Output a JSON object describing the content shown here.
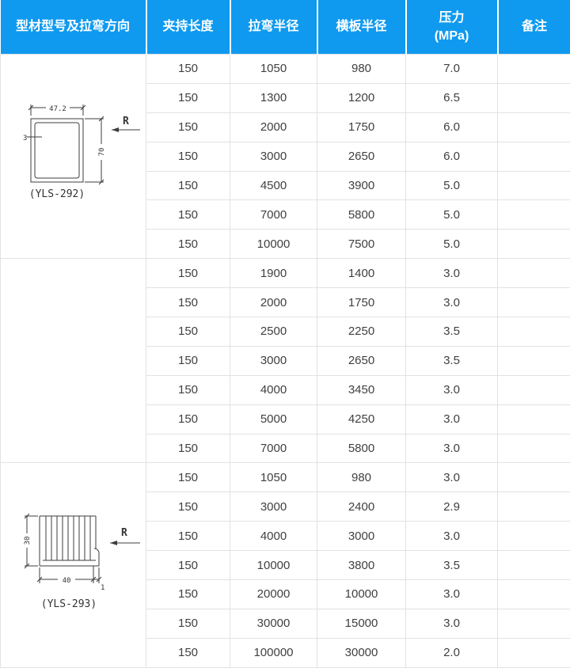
{
  "colors": {
    "header_bg": "#0f9af0",
    "header_text": "#ffffff",
    "grid_line": "#e2e2e2",
    "body_text": "#404040"
  },
  "table": {
    "headers": [
      "型材型号及拉弯方向",
      "夹持长度",
      "拉弯半径",
      "横板半径",
      "压力",
      "备注"
    ],
    "pressure_unit": "(MPa)",
    "groups": [
      {
        "profile": {
          "label": "(YLS-292)",
          "shape": "rectangular-tube",
          "dim_width": "47.2",
          "dim_height": "70",
          "dim_wall": "3",
          "radius_arrow_label": "R"
        },
        "rows": [
          [
            "150",
            "1050",
            "980",
            "7.0"
          ],
          [
            "150",
            "1300",
            "1200",
            "6.5"
          ],
          [
            "150",
            "2000",
            "1750",
            "6.0"
          ],
          [
            "150",
            "3000",
            "2650",
            "6.0"
          ],
          [
            "150",
            "4500",
            "3900",
            "5.0"
          ],
          [
            "150",
            "7000",
            "5800",
            "5.0"
          ],
          [
            "150",
            "10000",
            "7500",
            "5.0"
          ]
        ]
      },
      {
        "profile": null,
        "rows": [
          [
            "150",
            "1900",
            "1400",
            "3.0"
          ],
          [
            "150",
            "2000",
            "1750",
            "3.0"
          ],
          [
            "150",
            "2500",
            "2250",
            "3.5"
          ],
          [
            "150",
            "3000",
            "2650",
            "3.5"
          ],
          [
            "150",
            "4000",
            "3450",
            "3.0"
          ],
          [
            "150",
            "5000",
            "4250",
            "3.0"
          ],
          [
            "150",
            "7000",
            "5800",
            "3.0"
          ]
        ]
      },
      {
        "profile": {
          "label": "(YLS-293)",
          "shape": "finned-profile",
          "dim_width": "40",
          "dim_height": "30",
          "dim_wall": "1",
          "radius_arrow_label": "R"
        },
        "rows": [
          [
            "150",
            "1050",
            "980",
            "3.0"
          ],
          [
            "150",
            "3000",
            "2400",
            "2.9"
          ],
          [
            "150",
            "4000",
            "3000",
            "3.0"
          ],
          [
            "150",
            "10000",
            "3800",
            "3.5"
          ],
          [
            "150",
            "20000",
            "10000",
            "3.0"
          ],
          [
            "150",
            "30000",
            "15000",
            "3.0"
          ],
          [
            "150",
            "100000",
            "30000",
            "2.0"
          ]
        ]
      }
    ]
  }
}
